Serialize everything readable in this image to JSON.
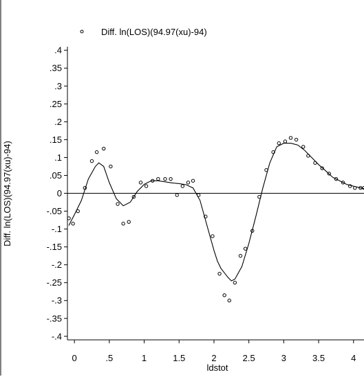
{
  "chart_data": {
    "type": "scatter",
    "title": "",
    "xlabel": "ldstot",
    "ylabel": "Diff. ln(LOS)(94.97(xu)-94)",
    "xlim": [
      -0.1,
      4.15
    ],
    "ylim": [
      -0.41,
      0.41
    ],
    "xticks": [
      0,
      0.5,
      1,
      1.5,
      2,
      2.5,
      3,
      3.5,
      4
    ],
    "xtick_labels": [
      "0",
      ".5",
      "1",
      "1.5",
      "2",
      "2.5",
      "3",
      "3.5",
      "4"
    ],
    "yticks": [
      0.4,
      0.35,
      0.3,
      0.25,
      0.2,
      0.15,
      0.1,
      0.05,
      0,
      -0.05,
      -0.1,
      -0.15,
      -0.2,
      -0.25,
      -0.3,
      -0.35,
      -0.4
    ],
    "ytick_labels": [
      ".4",
      ".35",
      ".3",
      ".25",
      ".2",
      ".15",
      ".1",
      ".05",
      "0",
      "-.05",
      "-.1",
      "-.15",
      "-.2",
      "-.25",
      "-.3",
      "-.35",
      "-.4"
    ],
    "grid": false,
    "reference_line_y": 0,
    "legend": {
      "position": "top",
      "entries": [
        "Diff. ln(LOS)(94.97(xu)-94)"
      ]
    },
    "series": [
      {
        "name": "Diff. ln(LOS)(94.97(xu)-94)",
        "kind": "scatter",
        "marker": "hollow-circle",
        "x": [
          -0.08,
          -0.02,
          0.05,
          0.15,
          0.25,
          0.32,
          0.42,
          0.52,
          0.62,
          0.7,
          0.78,
          0.85,
          0.95,
          1.03,
          1.12,
          1.2,
          1.3,
          1.38,
          1.47,
          1.55,
          1.63,
          1.7,
          1.78,
          1.88,
          1.98,
          2.08,
          2.15,
          2.22,
          2.3,
          2.38,
          2.45,
          2.55,
          2.65,
          2.75,
          2.85,
          2.93,
          3.02,
          3.1,
          3.18,
          3.28,
          3.35,
          3.45,
          3.55,
          3.65,
          3.75,
          3.85,
          3.95,
          4.02,
          4.1,
          4.15
        ],
        "y": [
          -0.07,
          -0.085,
          -0.05,
          0.015,
          0.09,
          0.115,
          0.125,
          0.075,
          -0.03,
          -0.085,
          -0.08,
          -0.01,
          0.03,
          0.02,
          0.035,
          0.04,
          0.04,
          0.04,
          -0.005,
          0.02,
          0.03,
          0.035,
          -0.005,
          -0.065,
          -0.12,
          -0.225,
          -0.285,
          -0.3,
          -0.25,
          -0.175,
          -0.155,
          -0.105,
          -0.01,
          0.065,
          0.115,
          0.14,
          0.145,
          0.155,
          0.15,
          0.13,
          0.105,
          0.085,
          0.07,
          0.055,
          0.04,
          0.03,
          0.02,
          0.015,
          0.015,
          0.015
        ]
      },
      {
        "name": "",
        "kind": "line",
        "x": [
          -0.08,
          0.0,
          0.1,
          0.2,
          0.3,
          0.35,
          0.42,
          0.5,
          0.6,
          0.7,
          0.8,
          0.9,
          1.0,
          1.1,
          1.2,
          1.3,
          1.4,
          1.5,
          1.6,
          1.7,
          1.8,
          1.9,
          2.0,
          2.05,
          2.1,
          2.2,
          2.25,
          2.3,
          2.4,
          2.5,
          2.6,
          2.7,
          2.8,
          2.9,
          3.0,
          3.1,
          3.2,
          3.3,
          3.4,
          3.5,
          3.6,
          3.7,
          3.8,
          3.9,
          4.0,
          4.1,
          4.15
        ],
        "y": [
          -0.09,
          -0.06,
          -0.02,
          0.04,
          0.075,
          0.085,
          0.075,
          0.03,
          -0.015,
          -0.035,
          -0.025,
          0.005,
          0.025,
          0.035,
          0.035,
          0.032,
          0.029,
          0.027,
          0.024,
          0.015,
          -0.02,
          -0.09,
          -0.16,
          -0.19,
          -0.21,
          -0.235,
          -0.245,
          -0.24,
          -0.205,
          -0.14,
          -0.065,
          0.015,
          0.085,
          0.13,
          0.14,
          0.14,
          0.135,
          0.12,
          0.1,
          0.08,
          0.063,
          0.045,
          0.035,
          0.025,
          0.02,
          0.015,
          0.013
        ]
      }
    ]
  }
}
